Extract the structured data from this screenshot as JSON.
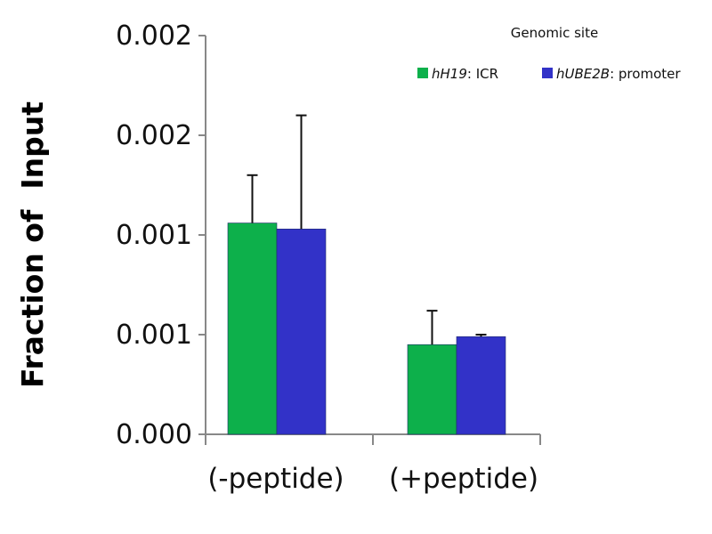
{
  "chart_data": {
    "type": "bar",
    "title": "",
    "xlabel": "",
    "ylabel": "Fraction of  Input",
    "ylim": [
      0,
      0.002
    ],
    "ytick_values": [
      0,
      0.0005,
      0.001,
      0.0015,
      0.002
    ],
    "ytick_labels": [
      "0.000",
      "0.001",
      "0.001",
      "0.002",
      "0.002"
    ],
    "categories": [
      "(-peptide)",
      "(+peptide)"
    ],
    "legend_title": "Genomic site",
    "legend_placement": "top-right",
    "grid": false,
    "series": [
      {
        "name": "hH19: ICR",
        "name_italic": "hH19",
        "name_rest": ": ICR",
        "color": "#0db04b",
        "values": [
          0.00106,
          0.00045
        ],
        "error_upper": [
          0.0013,
          0.00062
        ]
      },
      {
        "name": "hUBE2B: promoter",
        "name_italic": "hUBE2B",
        "name_rest": ": promoter",
        "color": "#3232c8",
        "values": [
          0.00103,
          0.00049
        ],
        "error_upper": [
          0.0016,
          0.0005
        ]
      }
    ]
  }
}
